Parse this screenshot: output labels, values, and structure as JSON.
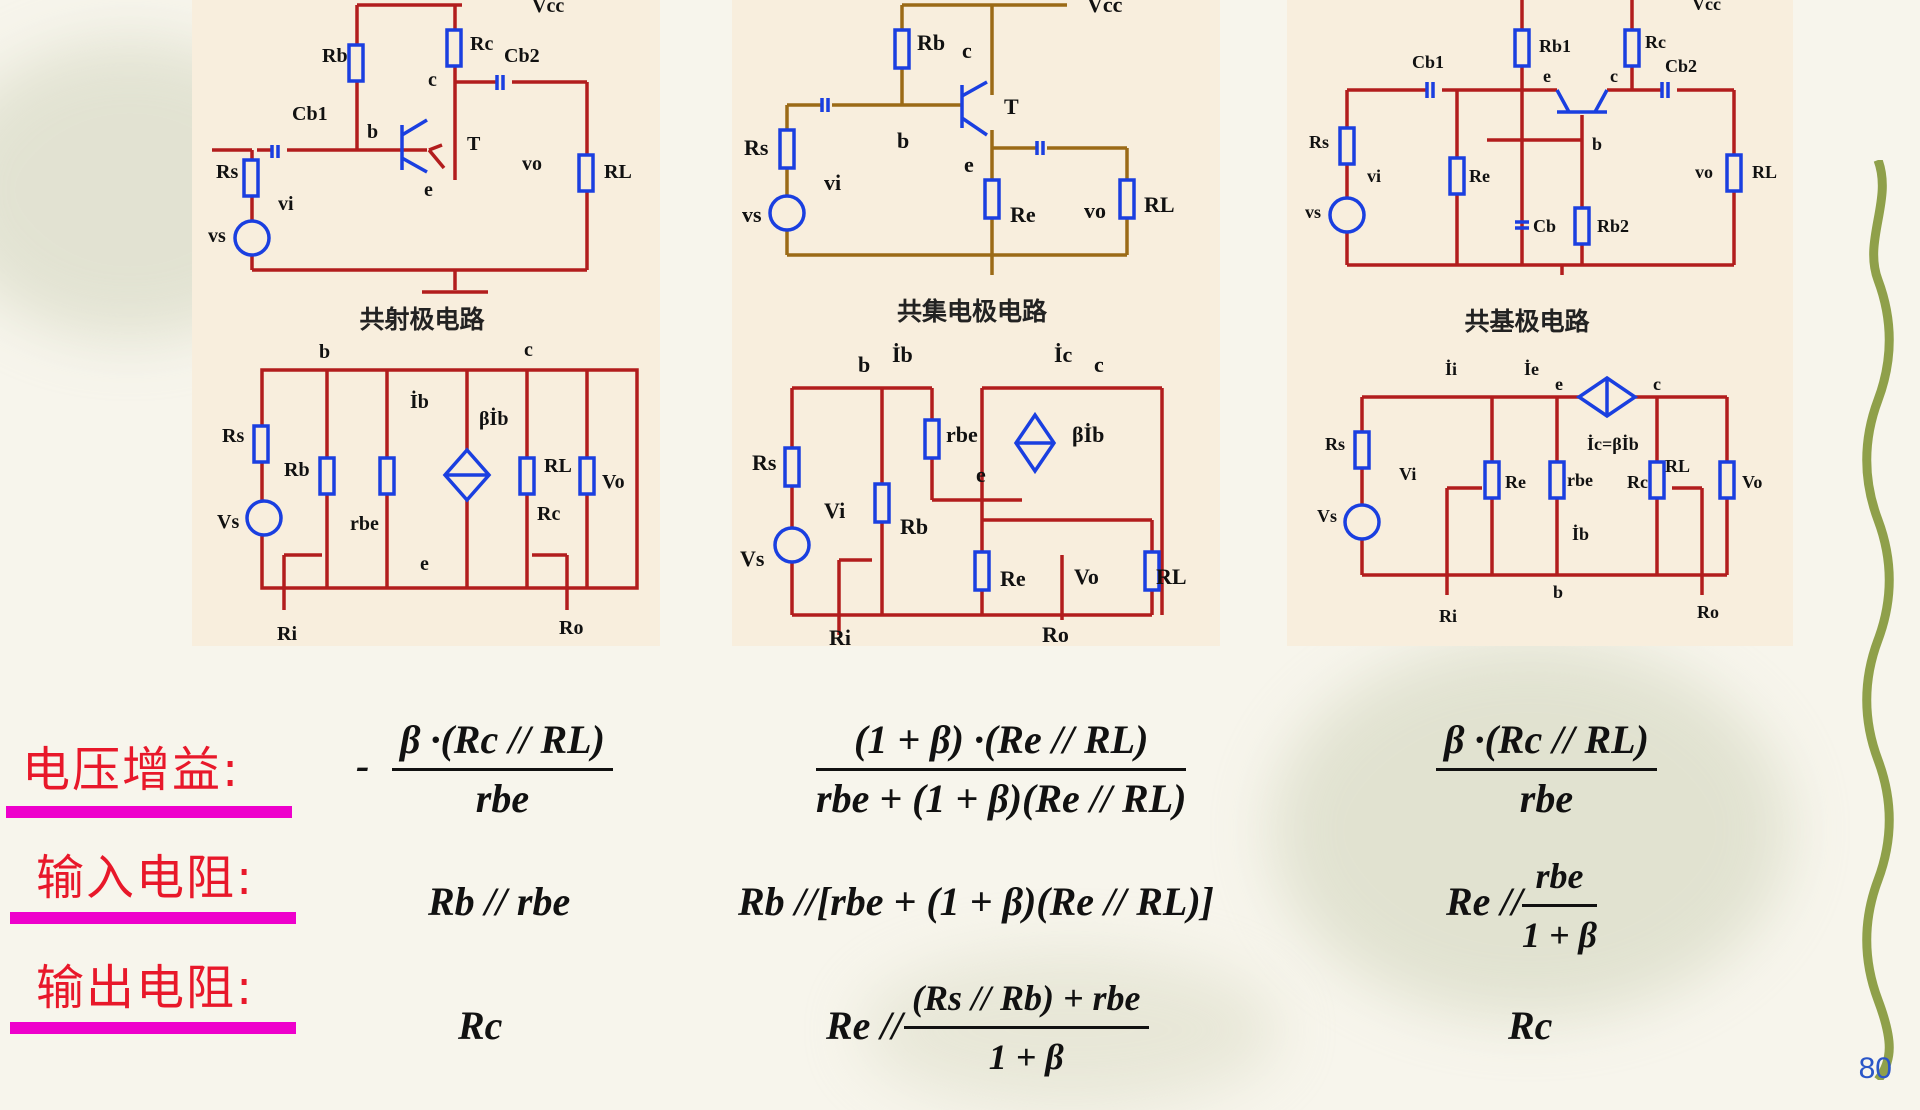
{
  "circuits": {
    "ce": {
      "caption": "共射极电路",
      "top_labels": [
        "Vcc",
        "Rb",
        "Rc",
        "Cb2",
        "c",
        "Cb1",
        "b",
        "T",
        "Rs",
        "vi",
        "e",
        "vo",
        "RL",
        "vs"
      ],
      "bottom_labels": [
        "b",
        "c",
        "İb",
        "βİb",
        "Rs",
        "Rb",
        "RL",
        "Vo",
        "rbe",
        "Rc",
        "Vs",
        "e",
        "Ri",
        "Ro"
      ]
    },
    "cc": {
      "caption": "共集电极电路",
      "top_labels": [
        "Vcc",
        "Rb",
        "c",
        "T",
        "Rs",
        "b",
        "vi",
        "e",
        "Re",
        "vo",
        "RL",
        "vs"
      ],
      "bottom_labels": [
        "b",
        "İb",
        "İc",
        "c",
        "rbe",
        "βİb",
        "Rs",
        "e",
        "Vi",
        "Rb",
        "Vs",
        "Re",
        "Vo",
        "RL",
        "Ri",
        "Ro"
      ]
    },
    "cb": {
      "caption": "共基极电路",
      "top_labels": [
        "Vcc",
        "Rb1",
        "Rc",
        "Cb2",
        "Cb1",
        "e",
        "c",
        "Rs",
        "vi",
        "Re",
        "b",
        "vo",
        "RL",
        "Cb",
        "Rb2",
        "vs"
      ],
      "bottom_labels": [
        "İi",
        "İe",
        "e",
        "c",
        "İc=βİb",
        "Rs",
        "Vi",
        "Re",
        "rbe",
        "Rc",
        "RL",
        "Vo",
        "Vs",
        "İb",
        "b",
        "Ri",
        "Ro"
      ]
    }
  },
  "rows": {
    "gain": "电压增益:",
    "rin": "输入电阻:",
    "rout": "输出电阻:"
  },
  "formulas": {
    "gain_ce": {
      "sign": "-",
      "num": "β ·(Rc // RL)",
      "den": "rbe"
    },
    "gain_cc": {
      "num": "(1 + β) ·(Re // RL)",
      "den": "rbe + (1 + β)(Re // RL)"
    },
    "gain_cb": {
      "num": "β ·(Rc // RL)",
      "den": "rbe"
    },
    "rin_ce": "Rb // rbe",
    "rin_cc": "Rb //[rbe + (1 + β)(Re // RL)]",
    "rin_cb": {
      "pre": "Re //",
      "num": "rbe",
      "den": "1 + β"
    },
    "rout_ce": "Rc",
    "rout_cc": {
      "pre": "Re //",
      "num": "(Rs // Rb) + rbe",
      "den": "1 + β"
    },
    "rout_cb": "Rc"
  },
  "page_number": "80",
  "colors": {
    "label_red": "#e8182a",
    "bar_magenta": "#ee00cc",
    "panel_bg": "#f8eedd",
    "circuit_red": "#b21d1d",
    "circuit_brown": "#9b6a16",
    "circuit_blue": "#1a3fe0"
  }
}
